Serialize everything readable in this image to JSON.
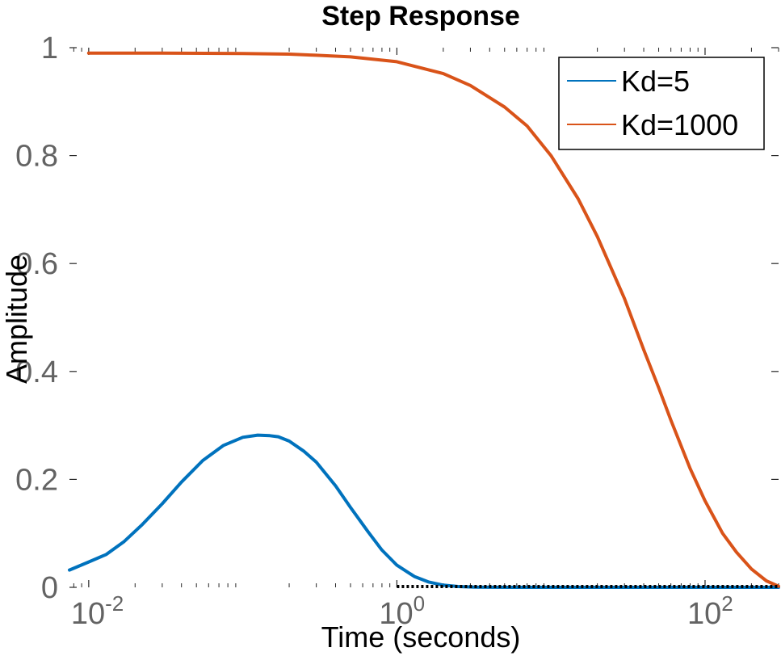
{
  "chart_data": {
    "type": "line",
    "title": "Step Response",
    "xlabel": "Time (seconds)",
    "ylabel": "Amplitude",
    "xscale": "log",
    "xlim": [
      0.0075,
      300
    ],
    "ylim": [
      0,
      1
    ],
    "xticks": [
      {
        "value": 0.01,
        "base": "10",
        "exp": "-2"
      },
      {
        "value": 1,
        "base": "10",
        "exp": "0"
      },
      {
        "value": 100,
        "base": "10",
        "exp": "2"
      }
    ],
    "yticks": [
      {
        "value": 0,
        "label": "0"
      },
      {
        "value": 0.2,
        "label": "0.2"
      },
      {
        "value": 0.4,
        "label": "0.4"
      },
      {
        "value": 0.6,
        "label": "0.6"
      },
      {
        "value": 0.8,
        "label": "0.8"
      },
      {
        "value": 1,
        "label": "1"
      }
    ],
    "grid": false,
    "legend_position": "top-right",
    "steady_state_marker": {
      "x_start": 1,
      "x_end": 300,
      "y": 0
    },
    "series": [
      {
        "name": "Kd=5",
        "color": "#0072BD",
        "x": [
          0.0075,
          0.01,
          0.013,
          0.017,
          0.022,
          0.03,
          0.04,
          0.055,
          0.075,
          0.1,
          0.125,
          0.15,
          0.17,
          0.2,
          0.25,
          0.3,
          0.4,
          0.5,
          0.65,
          0.8,
          1.0,
          1.3,
          1.6,
          2.0,
          2.5,
          3.2,
          4,
          6,
          10,
          20,
          50,
          100,
          200,
          300
        ],
        "y": [
          0.032,
          0.047,
          0.061,
          0.085,
          0.115,
          0.155,
          0.195,
          0.235,
          0.263,
          0.278,
          0.282,
          0.281,
          0.279,
          0.271,
          0.252,
          0.232,
          0.188,
          0.148,
          0.103,
          0.069,
          0.041,
          0.02,
          0.01,
          0.004,
          0.0015,
          0.0005,
          0.0002,
          0.0,
          0.0,
          0.0,
          0.0,
          0.0,
          0.0,
          0.0
        ]
      },
      {
        "name": "Kd=1000",
        "color": "#D95319",
        "x": [
          0.01,
          0.03,
          0.1,
          0.2,
          0.3,
          0.5,
          1,
          2,
          3,
          5,
          7,
          10,
          15,
          20,
          30,
          40,
          50,
          60,
          80,
          100,
          130,
          160,
          200,
          250,
          300
        ],
        "y": [
          0.99,
          0.99,
          0.989,
          0.988,
          0.986,
          0.983,
          0.974,
          0.952,
          0.93,
          0.89,
          0.855,
          0.8,
          0.72,
          0.65,
          0.535,
          0.44,
          0.37,
          0.31,
          0.22,
          0.16,
          0.1,
          0.065,
          0.034,
          0.012,
          0.002
        ]
      }
    ]
  }
}
